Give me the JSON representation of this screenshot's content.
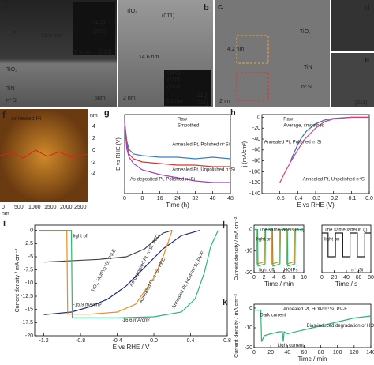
{
  "images": [
    {
      "panel": "a",
      "texts": [
        "Pt",
        "18.2 nm",
        "TiO₂",
        "TiN",
        "n⁺Si",
        "5nm",
        "(111)",
        "(002)",
        "5 1/nm",
        "[110]"
      ]
    },
    {
      "panel": "b",
      "texts": [
        "TiO₂",
        "(01̄1)",
        "14.6 nm",
        "2 nm",
        "(200)",
        "(110)",
        "(101)",
        "5 1/nm",
        "[111]",
        "[011]"
      ]
    },
    {
      "panel": "c",
      "texts": [
        "TiO₂",
        "4.2 nm",
        "TiN",
        "n⁺Si",
        "2nm"
      ]
    },
    {
      "panel": "d",
      "texts": []
    },
    {
      "panel": "e",
      "texts": [
        "[011]"
      ]
    },
    {
      "panel": "f",
      "texts": [
        "Annealed Pt",
        "nm",
        "4",
        "2",
        "0",
        "-2",
        "-4",
        "0",
        "500",
        "1000",
        "1500",
        "2000",
        "2500",
        "nm"
      ]
    }
  ],
  "chart_data": [
    {
      "type": "line",
      "panel": "g",
      "xlabel": "Time (h)",
      "ylabel": "E vs RHE (V)",
      "xlim": [
        0,
        48
      ],
      "xticks": [
        0,
        8,
        16,
        24,
        32,
        40,
        48
      ],
      "ylim": [
        -0.45,
        0.05
      ],
      "annotations": [
        "Raw",
        "Smoothed"
      ],
      "series": [
        {
          "name": "Annealed Pt, Polished n⁺Si",
          "color": "#3a7fc1",
          "x": [
            0,
            1,
            2,
            4,
            8,
            16,
            24,
            32,
            40,
            48
          ],
          "values": [
            0,
            -0.12,
            -0.17,
            -0.2,
            -0.21,
            -0.22,
            -0.22,
            -0.23,
            -0.22,
            -0.23
          ]
        },
        {
          "name": "Annealed Pt, Unpolished n⁺Si",
          "color": "#d9342b",
          "x": [
            0,
            1,
            2,
            4,
            8,
            16,
            24,
            32,
            40,
            48
          ],
          "values": [
            0,
            -0.14,
            -0.2,
            -0.23,
            -0.25,
            -0.26,
            -0.27,
            -0.27,
            -0.28,
            -0.28
          ]
        },
        {
          "name": "As-deposited Pt, Polished n⁺Si",
          "color": "#a040c0",
          "x": [
            0,
            1,
            2,
            4,
            8,
            16,
            24,
            32,
            40,
            48
          ],
          "values": [
            0,
            -0.17,
            -0.22,
            -0.26,
            -0.3,
            -0.33,
            -0.35,
            -0.37,
            -0.38,
            -0.38
          ]
        }
      ]
    },
    {
      "type": "line",
      "panel": "h",
      "xlabel": "E vs RHE (V)",
      "ylabel": "j (mA/cm²)",
      "xlim": [
        -0.6,
        0
      ],
      "xticks": [
        -0.5,
        -0.4,
        -0.3,
        -0.2,
        -0.1,
        {
          "value": 0,
          "label": "0.0"
        }
      ],
      "ylim": [
        -140,
        5
      ],
      "yticks": [
        0,
        -20,
        -40,
        -60,
        -80,
        -100,
        -120,
        -140
      ],
      "annotations": [
        "Raw",
        "Average, smoothed"
      ],
      "series": [
        {
          "name": "Annealed Pt, Polished n⁺Si",
          "color": "#2f6fc0",
          "x": [
            -0.44,
            -0.42,
            -0.4,
            -0.38,
            -0.35,
            -0.3,
            -0.25,
            -0.2,
            -0.1,
            0
          ],
          "values": [
            -80,
            -65,
            -50,
            -38,
            -25,
            -12,
            -5,
            -2,
            0,
            0
          ]
        },
        {
          "name": "Annealed Pt, Unpolished n⁺Si",
          "color": "#e0407a",
          "x": [
            -0.5,
            -0.47,
            -0.44,
            -0.4,
            -0.36,
            -0.3,
            -0.25,
            -0.2,
            -0.1,
            0
          ],
          "values": [
            -120,
            -100,
            -82,
            -60,
            -40,
            -20,
            -8,
            -3,
            0,
            0
          ]
        }
      ]
    },
    {
      "type": "line",
      "panel": "i",
      "xlabel": "E vs RHE / V",
      "ylabel": "Current density / mA cm⁻²",
      "xlim": [
        -1.3,
        0.8
      ],
      "xticks": [
        -1.2,
        -0.8,
        -0.4,
        {
          "value": 0,
          "label": "0.0"
        },
        0.4,
        0.8
      ],
      "ylim": [
        -20,
        1
      ],
      "yticks": [
        0,
        -2.5,
        -5,
        -7.5,
        -10,
        -12.5,
        -15,
        -17.5,
        -20
      ],
      "annotations": [
        "light off",
        "-15.9 mA/cm²",
        "-16.6 mA/cm²"
      ],
      "series": [
        {
          "name": "TiO₂, HOIP/n⁺Si, PV-E",
          "color": "#1f2a7a",
          "x": [
            -1.2,
            -0.9,
            -0.7,
            -0.5,
            -0.3,
            -0.1,
            0.1,
            0.3,
            0.5
          ],
          "values": [
            -16,
            -15.5,
            -14.5,
            -13,
            -10.5,
            -7,
            -3.5,
            -1,
            0
          ]
        },
        {
          "name": "As-deposited Pt, n⁺Si, PEC",
          "color": "#444444",
          "x": [
            -1.2,
            -0.6,
            -0.3,
            -0.1,
            0,
            0.1,
            0.2
          ],
          "values": [
            -6,
            -5.5,
            -5,
            -3.5,
            -2,
            -0.5,
            0
          ]
        },
        {
          "name": "Annealed Pt, n⁺Si, PEC",
          "color": "#f08a1c",
          "x": [
            -1.25,
            -0.95,
            -0.94,
            -0.7,
            -0.4,
            -0.2,
            0,
            0.1,
            0.2
          ],
          "values": [
            0,
            0,
            -15.9,
            -15.9,
            -15.5,
            -14,
            -9,
            -5,
            0
          ]
        },
        {
          "name": "Annealed Pt, HOIP/n⁺Si, PV-E",
          "color": "#2bb673",
          "x": [
            -1.25,
            -0.9,
            -0.89,
            -0.4,
            0,
            0.3,
            0.45,
            0.55,
            0.62,
            0.7
          ],
          "values": [
            0,
            0,
            -16.6,
            -16.6,
            -16.4,
            -15.5,
            -13,
            -8,
            -3,
            0
          ]
        }
      ]
    },
    {
      "type": "line",
      "panel": "j",
      "xlabel": "Time / min",
      "ylabel": "Current density / mA cm⁻²",
      "xlim": [
        0,
        10
      ],
      "xticks": [
        0,
        2,
        4,
        6,
        8,
        10
      ],
      "ylim": [
        -20,
        2
      ],
      "yticks": [
        0,
        -10,
        -20
      ],
      "annotations": [
        "The same labels in (i)",
        "light on",
        "light off",
        "HOIPs"
      ],
      "series": [
        {
          "color": "#f08a1c",
          "x": [
            0,
            0.5,
            0.6,
            2,
            2.1,
            3.5,
            3.6,
            5,
            5.1,
            6.5,
            6.6,
            8,
            8.1,
            10
          ],
          "values": [
            0,
            0,
            -16,
            -15,
            0,
            0,
            -16,
            -15,
            0,
            0,
            -16,
            -15,
            0,
            0
          ]
        },
        {
          "color": "#2bb673",
          "x": [
            0,
            0.7,
            0.8,
            2.2,
            2.3,
            3.7,
            3.8,
            5.2,
            5.3,
            6.7,
            6.8,
            8.2,
            8.3,
            10
          ],
          "values": [
            0,
            0,
            -17,
            -16,
            0,
            0,
            -17,
            -16,
            0,
            0,
            -17,
            -16,
            0,
            0
          ]
        }
      ]
    },
    {
      "type": "line",
      "xlabel": "Time / s",
      "xlim": [
        0,
        80
      ],
      "xticks": [
        0,
        20,
        40,
        60,
        80
      ],
      "ylim": [
        -10,
        2
      ],
      "annotations": [
        "The same label in (i)",
        "light on",
        "n⁺pSi"
      ],
      "series": [
        {
          "color": "#222222",
          "x": [
            0,
            10,
            10,
            22,
            22,
            34,
            34,
            46,
            46,
            58,
            58,
            70,
            70,
            80
          ],
          "values": [
            0,
            0,
            -6,
            -6,
            0,
            0,
            -6,
            -6,
            0,
            0,
            -6,
            -6,
            0,
            0
          ]
        }
      ]
    },
    {
      "type": "line",
      "panel": "k",
      "xlabel": "Time / min",
      "ylabel": "Current density / mA cm⁻²",
      "xlim": [
        0,
        140
      ],
      "xticks": [
        0,
        20,
        40,
        60,
        80,
        100,
        120,
        140
      ],
      "ylim": [
        -20,
        2
      ],
      "yticks": [
        0,
        -10,
        -20
      ],
      "annotations": [
        "Annealed Pt, HOIP/n⁺Si, PV-E",
        "Dark current",
        "Light current",
        "Bias-induced degradation of HOIP photoabsorber"
      ],
      "series": [
        {
          "color": "#2bb673",
          "x": [
            0,
            8,
            9,
            10,
            12,
            20,
            30,
            34,
            35,
            36,
            40,
            60,
            80,
            100,
            120,
            140
          ],
          "values": [
            -1,
            -1,
            -17,
            -16,
            -14,
            -13,
            -12,
            -12,
            -17,
            -12,
            -13,
            -11,
            -9,
            -7,
            -5,
            -4
          ]
        }
      ]
    }
  ]
}
